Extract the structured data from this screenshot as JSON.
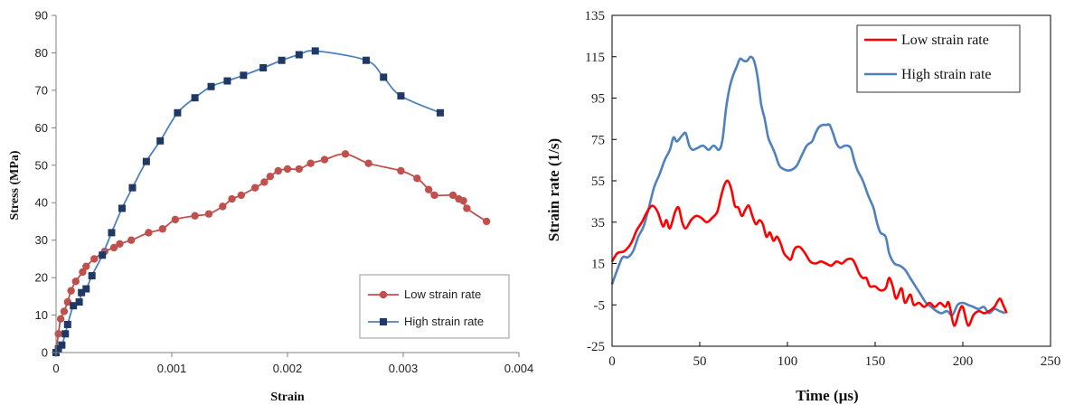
{
  "chart_data": [
    {
      "type": "line",
      "xlabel": "Strain",
      "ylabel": "Stress (MPa)",
      "xlim": [
        0,
        0.004
      ],
      "ylim": [
        0,
        90
      ],
      "xticks": [
        "0",
        "0.001",
        "0.002",
        "0.003",
        "0.004"
      ],
      "yticks": [
        "0",
        "10",
        "20",
        "30",
        "40",
        "50",
        "60",
        "70",
        "80",
        "90"
      ],
      "legend_position": "bottom-right",
      "grid": false,
      "series": [
        {
          "name": "Low strain rate",
          "color": "#C0504D",
          "marker": "circle",
          "points": [
            [
              0,
              0
            ],
            [
              2e-05,
              5
            ],
            [
              4e-05,
              9
            ],
            [
              7e-05,
              11
            ],
            [
              0.0001,
              13.5
            ],
            [
              0.00013,
              16.5
            ],
            [
              0.00017,
              19
            ],
            [
              0.00023,
              21.5
            ],
            [
              0.00026,
              23
            ],
            [
              0.00033,
              25
            ],
            [
              0.00042,
              27
            ],
            [
              0.0005,
              28
            ],
            [
              0.00055,
              29
            ],
            [
              0.00065,
              30
            ],
            [
              0.0008,
              32
            ],
            [
              0.00092,
              33
            ],
            [
              0.00103,
              35.5
            ],
            [
              0.0012,
              36.5
            ],
            [
              0.00132,
              37
            ],
            [
              0.00144,
              39
            ],
            [
              0.00152,
              41
            ],
            [
              0.0016,
              42
            ],
            [
              0.00172,
              44
            ],
            [
              0.0018,
              45.5
            ],
            [
              0.00185,
              47
            ],
            [
              0.00192,
              48.5
            ],
            [
              0.002,
              49
            ],
            [
              0.0021,
              49
            ],
            [
              0.0022,
              50.5
            ],
            [
              0.00232,
              51.5
            ],
            [
              0.0025,
              53
            ],
            [
              0.0027,
              50.5
            ],
            [
              0.00298,
              48.5
            ],
            [
              0.00312,
              46.5
            ],
            [
              0.00322,
              43.5
            ],
            [
              0.00327,
              42
            ],
            [
              0.00343,
              42
            ],
            [
              0.00348,
              41
            ],
            [
              0.00352,
              40.5
            ],
            [
              0.00355,
              38.5
            ],
            [
              0.00372,
              35
            ]
          ]
        },
        {
          "name": "High strain rate",
          "color": "#1F3864",
          "line_color": "#4F81BD",
          "marker": "square",
          "points": [
            [
              0,
              0
            ],
            [
              2e-05,
              1
            ],
            [
              5e-05,
              2
            ],
            [
              8e-05,
              5
            ],
            [
              0.0001,
              7.5
            ],
            [
              0.00015,
              12.5
            ],
            [
              0.0002,
              13.5
            ],
            [
              0.00022,
              16
            ],
            [
              0.00026,
              17
            ],
            [
              0.00031,
              20.5
            ],
            [
              0.0004,
              26
            ],
            [
              0.00048,
              32
            ],
            [
              0.00057,
              38.5
            ],
            [
              0.00066,
              44
            ],
            [
              0.00078,
              51
            ],
            [
              0.0009,
              56.5
            ],
            [
              0.00105,
              64
            ],
            [
              0.0012,
              68
            ],
            [
              0.00134,
              71
            ],
            [
              0.00148,
              72.5
            ],
            [
              0.00162,
              74
            ],
            [
              0.00179,
              76
            ],
            [
              0.00195,
              78
            ],
            [
              0.0021,
              79.5
            ],
            [
              0.00224,
              80.5
            ],
            [
              0.00268,
              78
            ],
            [
              0.00283,
              73.5
            ],
            [
              0.00298,
              68.5
            ],
            [
              0.00332,
              64
            ]
          ]
        }
      ]
    },
    {
      "type": "line",
      "xlabel": "Time (µs)",
      "ylabel": "Strain rate  (1/s)",
      "xlim": [
        0,
        250
      ],
      "ylim": [
        -25,
        135
      ],
      "xticks": [
        "0",
        "50",
        "100",
        "150",
        "200",
        "250"
      ],
      "yticks": [
        "-25",
        "-5",
        "15",
        "35",
        "55",
        "75",
        "95",
        "115",
        "135"
      ],
      "legend_position": "top-right",
      "grid": false,
      "series": [
        {
          "name": "Low strain rate",
          "color": "#FF0000",
          "points": [
            [
              0,
              16
            ],
            [
              3,
              20
            ],
            [
              7,
              21
            ],
            [
              11,
              25
            ],
            [
              14,
              31
            ],
            [
              17,
              35
            ],
            [
              20,
              40
            ],
            [
              23,
              43
            ],
            [
              26,
              40
            ],
            [
              29,
              33
            ],
            [
              31,
              36
            ],
            [
              33,
              32
            ],
            [
              36,
              40
            ],
            [
              38,
              42
            ],
            [
              40,
              35
            ],
            [
              42,
              32
            ],
            [
              45,
              36
            ],
            [
              48,
              38
            ],
            [
              51,
              37
            ],
            [
              54,
              35
            ],
            [
              57,
              37
            ],
            [
              60,
              40
            ],
            [
              62,
              47
            ],
            [
              64,
              53
            ],
            [
              66,
              55
            ],
            [
              68,
              51
            ],
            [
              70,
              43
            ],
            [
              72,
              42
            ],
            [
              74,
              38
            ],
            [
              76,
              41
            ],
            [
              78,
              43
            ],
            [
              80,
              38
            ],
            [
              82,
              34
            ],
            [
              84,
              36
            ],
            [
              86,
              34
            ],
            [
              88,
              28
            ],
            [
              90,
              30
            ],
            [
              92,
              26
            ],
            [
              94,
              28
            ],
            [
              96,
              25
            ],
            [
              98,
              20
            ],
            [
              100,
              18
            ],
            [
              102,
              17
            ],
            [
              104,
              22
            ],
            [
              107,
              23
            ],
            [
              110,
              20
            ],
            [
              113,
              16
            ],
            [
              116,
              15
            ],
            [
              119,
              16
            ],
            [
              122,
              15
            ],
            [
              125,
              14
            ],
            [
              128,
              16
            ],
            [
              131,
              15
            ],
            [
              134,
              17
            ],
            [
              137,
              17
            ],
            [
              139,
              14
            ],
            [
              141,
              10
            ],
            [
              143,
              8
            ],
            [
              145,
              8
            ],
            [
              147,
              4
            ],
            [
              150,
              4
            ],
            [
              153,
              2
            ],
            [
              156,
              3
            ],
            [
              158,
              8
            ],
            [
              160,
              4
            ],
            [
              162,
              -2
            ],
            [
              165,
              3
            ],
            [
              167,
              -4
            ],
            [
              170,
              0
            ],
            [
              172,
              -5
            ],
            [
              175,
              -4
            ],
            [
              178,
              -6
            ],
            [
              181,
              -4
            ],
            [
              184,
              -6
            ],
            [
              187,
              -4
            ],
            [
              190,
              -6
            ],
            [
              192,
              -4
            ],
            [
              195,
              -15
            ],
            [
              198,
              -8
            ],
            [
              200,
              -6
            ],
            [
              203,
              -15
            ],
            [
              206,
              -10
            ],
            [
              209,
              -8
            ],
            [
              212,
              -9
            ],
            [
              215,
              -8
            ],
            [
              218,
              -6
            ],
            [
              221,
              -2
            ],
            [
              223,
              -5
            ],
            [
              225,
              -9
            ]
          ]
        },
        {
          "name": "High strain rate",
          "color": "#4F81BD",
          "points": [
            [
              0,
              5
            ],
            [
              3,
              12
            ],
            [
              6,
              18
            ],
            [
              9,
              18
            ],
            [
              12,
              21
            ],
            [
              15,
              28
            ],
            [
              18,
              33
            ],
            [
              21,
              42
            ],
            [
              24,
              52
            ],
            [
              27,
              58
            ],
            [
              30,
              65
            ],
            [
              33,
              70
            ],
            [
              35,
              76
            ],
            [
              37,
              74
            ],
            [
              40,
              77
            ],
            [
              42,
              78
            ],
            [
              44,
              72
            ],
            [
              46,
              70
            ],
            [
              49,
              71
            ],
            [
              52,
              72
            ],
            [
              55,
              70
            ],
            [
              58,
              72
            ],
            [
              61,
              70
            ],
            [
              63,
              75
            ],
            [
              65,
              90
            ],
            [
              67,
              100
            ],
            [
              69,
              106
            ],
            [
              71,
              110
            ],
            [
              73,
              114
            ],
            [
              75,
              113
            ],
            [
              77,
              113
            ],
            [
              79,
              115
            ],
            [
              81,
              113
            ],
            [
              83,
              105
            ],
            [
              85,
              92
            ],
            [
              87,
              85
            ],
            [
              89,
              76
            ],
            [
              91,
              72
            ],
            [
              93,
              68
            ],
            [
              95,
              63
            ],
            [
              97,
              61
            ],
            [
              101,
              60
            ],
            [
              105,
              62
            ],
            [
              108,
              67
            ],
            [
              111,
              72
            ],
            [
              114,
              74
            ],
            [
              116,
              78
            ],
            [
              118,
              81
            ],
            [
              120,
              82
            ],
            [
              122,
              82
            ],
            [
              124,
              82
            ],
            [
              126,
              78
            ],
            [
              128,
              73
            ],
            [
              130,
              71
            ],
            [
              133,
              72
            ],
            [
              136,
              71
            ],
            [
              138,
              65
            ],
            [
              140,
              60
            ],
            [
              143,
              55
            ],
            [
              146,
              48
            ],
            [
              149,
              42
            ],
            [
              151,
              35
            ],
            [
              153,
              30
            ],
            [
              156,
              28
            ],
            [
              158,
              20
            ],
            [
              161,
              15
            ],
            [
              164,
              14
            ],
            [
              167,
              12
            ],
            [
              170,
              8
            ],
            [
              173,
              4
            ],
            [
              176,
              0
            ],
            [
              179,
              -4
            ],
            [
              182,
              -6
            ],
            [
              185,
              -8
            ],
            [
              188,
              -9
            ],
            [
              191,
              -8
            ],
            [
              194,
              -10
            ],
            [
              197,
              -5
            ],
            [
              200,
              -4
            ],
            [
              203,
              -5
            ],
            [
              206,
              -6
            ],
            [
              209,
              -7
            ],
            [
              212,
              -6
            ],
            [
              215,
              -9
            ],
            [
              218,
              -7
            ],
            [
              221,
              -8
            ],
            [
              224,
              -9
            ]
          ]
        }
      ]
    }
  ]
}
